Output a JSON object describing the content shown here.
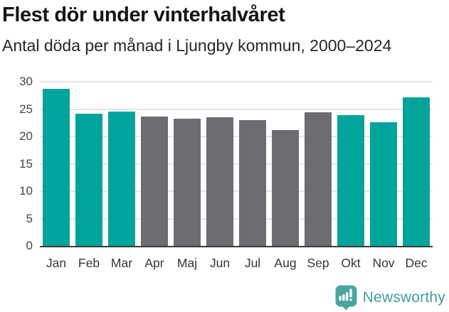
{
  "header": {
    "title": "Flest dör under vinterhalvåret",
    "subtitle": "Antal döda per månad i Ljungby kommun, 2000–2024"
  },
  "chart_data": {
    "type": "bar",
    "title": "Flest dör under vinterhalvåret",
    "subtitle": "Antal döda per månad i Ljungby kommun, 2000–2024",
    "categories": [
      "Jan",
      "Feb",
      "Mar",
      "Apr",
      "Maj",
      "Jun",
      "Jul",
      "Aug",
      "Sep",
      "Okt",
      "Nov",
      "Dec"
    ],
    "values": [
      28.7,
      24.2,
      24.6,
      23.7,
      23.3,
      23.5,
      23.0,
      21.2,
      24.4,
      23.9,
      22.6,
      27.1
    ],
    "bar_color_keys": [
      "winter",
      "winter",
      "winter",
      "summer",
      "summer",
      "summer",
      "summer",
      "summer",
      "summer",
      "winter",
      "winter",
      "winter"
    ],
    "palette": {
      "winter": "#00a49b",
      "summer": "#6c6c71"
    },
    "xlabel": "",
    "ylabel": "",
    "ylim": [
      0,
      30
    ],
    "y_ticks": [
      0,
      5,
      10,
      15,
      20,
      25,
      30
    ],
    "grid": true,
    "legend": false,
    "gridline_color": "#e4e4e4",
    "axis_line_color": "#3c3c3c"
  },
  "footer": {
    "brand": "Newsworthy",
    "brand_color": "#419e9b",
    "logo_icon": "bar-chart-speech-bubble-icon",
    "logo_color": "#4aa5a0"
  }
}
